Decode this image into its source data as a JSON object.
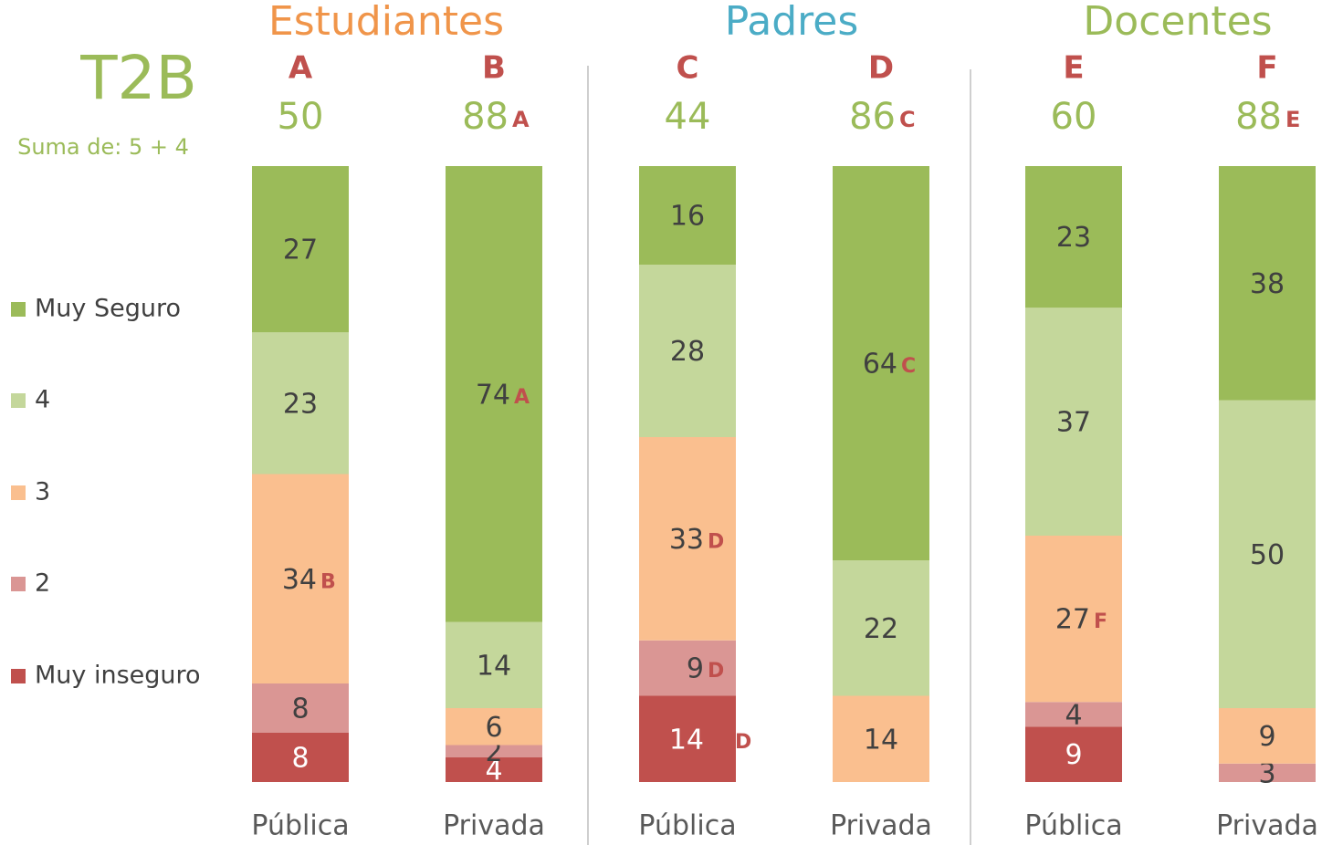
{
  "chart_data": {
    "type": "bar",
    "stacked": true,
    "title": "T2B",
    "subtitle": "Suma de: 5 + 4",
    "groups": [
      {
        "name": "Estudiantes",
        "color": "#f0954a"
      },
      {
        "name": "Padres",
        "color": "#4bacc6"
      },
      {
        "name": "Docentes",
        "color": "#9bbb59"
      }
    ],
    "bar_letters": [
      "A",
      "B",
      "C",
      "D",
      "E",
      "F"
    ],
    "categories": [
      "Pública",
      "Privada",
      "Pública",
      "Privada",
      "Pública",
      "Privada"
    ],
    "t2b": [
      50,
      88,
      44,
      86,
      60,
      88
    ],
    "t2b_significance": [
      null,
      "A",
      null,
      "C",
      null,
      "E"
    ],
    "ylim": [
      0,
      100
    ],
    "series": [
      {
        "name": "Muy inseguro",
        "color": "#c0504d",
        "values": [
          8,
          4,
          14,
          null,
          9,
          null
        ],
        "significance": [
          null,
          null,
          "D",
          null,
          null,
          null
        ]
      },
      {
        "name": "2",
        "color": "#da9694",
        "values": [
          8,
          2,
          9,
          null,
          4,
          3
        ],
        "significance": [
          null,
          null,
          "D",
          null,
          null,
          null
        ]
      },
      {
        "name": "3",
        "color": "#fabf8f",
        "values": [
          34,
          6,
          33,
          14,
          27,
          9
        ],
        "significance": [
          "B",
          null,
          "D",
          null,
          "F",
          null
        ]
      },
      {
        "name": "4",
        "color": "#c4d79b",
        "values": [
          23,
          14,
          28,
          22,
          37,
          50
        ],
        "significance": [
          null,
          null,
          null,
          null,
          null,
          null
        ]
      },
      {
        "name": "Muy Seguro",
        "color": "#9bbb59",
        "values": [
          27,
          74,
          16,
          64,
          23,
          38
        ],
        "significance": [
          null,
          "A",
          null,
          "C",
          null,
          null
        ]
      }
    ]
  }
}
